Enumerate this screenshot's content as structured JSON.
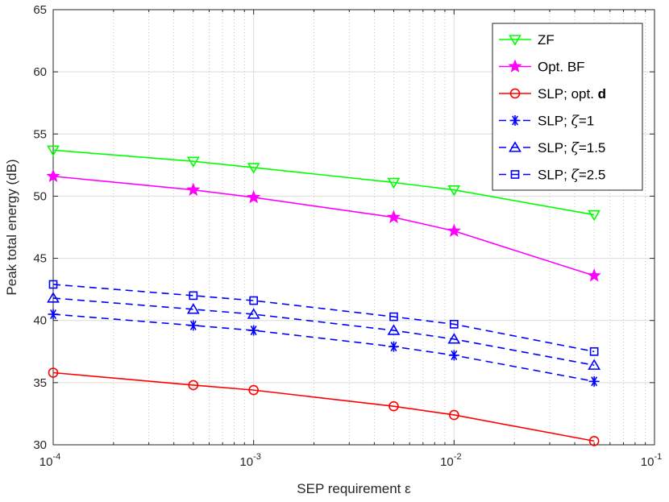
{
  "chart_data": {
    "type": "line",
    "title": "",
    "xlabel": "SEP requirement ε",
    "ylabel": "Peak total energy (dB)",
    "xscale": "log",
    "xlim": [
      0.0001,
      0.1
    ],
    "ylim": [
      30,
      65
    ],
    "grid": true,
    "x_ticks": [
      {
        "value": 0.0001,
        "base": "10",
        "exp": "-4"
      },
      {
        "value": 0.001,
        "base": "10",
        "exp": "-3"
      },
      {
        "value": 0.01,
        "base": "10",
        "exp": "-2"
      },
      {
        "value": 0.1,
        "base": "10",
        "exp": "-1"
      }
    ],
    "y_ticks": [
      {
        "value": 30,
        "label": "30"
      },
      {
        "value": 35,
        "label": "35"
      },
      {
        "value": 40,
        "label": "40"
      },
      {
        "value": 45,
        "label": "45"
      },
      {
        "value": 50,
        "label": "50"
      },
      {
        "value": 55,
        "label": "55"
      },
      {
        "value": 60,
        "label": "60"
      },
      {
        "value": 65,
        "label": "65"
      }
    ],
    "x": [
      0.0001,
      0.0005,
      0.001,
      0.005,
      0.01,
      0.05
    ],
    "legend_position": "top-right",
    "series": [
      {
        "key": "zf",
        "name": "ZF",
        "label_parts": [
          {
            "text": "ZF",
            "style": "normal"
          }
        ],
        "color": "#00ff00",
        "marker": "triangle-down",
        "dash": "solid",
        "values": [
          53.7,
          52.8,
          52.3,
          51.1,
          50.5,
          48.5
        ]
      },
      {
        "key": "optbf",
        "name": "Opt. BF",
        "label_parts": [
          {
            "text": "Opt. BF",
            "style": "normal"
          }
        ],
        "color": "#ff00ff",
        "marker": "star",
        "dash": "solid",
        "values": [
          51.6,
          50.5,
          49.9,
          48.3,
          47.2,
          43.6
        ]
      },
      {
        "key": "slp_optd",
        "name": "SLP; opt. d",
        "label_parts": [
          {
            "text": "SLP; opt. ",
            "style": "normal"
          },
          {
            "text": "d",
            "style": "bold"
          }
        ],
        "color": "#ff0000",
        "marker": "circle",
        "dash": "solid",
        "values": [
          35.8,
          34.8,
          34.4,
          33.1,
          32.4,
          30.3
        ]
      },
      {
        "key": "slp_z1",
        "name": "SLP; ζ=1",
        "label_parts": [
          {
            "text": "SLP; ",
            "style": "normal"
          },
          {
            "text": "ζ",
            "style": "italic"
          },
          {
            "text": "=1",
            "style": "normal"
          }
        ],
        "color": "#0000ff",
        "marker": "asterisk",
        "dash": "dashed",
        "values": [
          40.5,
          39.6,
          39.2,
          37.9,
          37.2,
          35.1
        ]
      },
      {
        "key": "slp_z15",
        "name": "SLP; ζ=1.5",
        "label_parts": [
          {
            "text": "SLP; ",
            "style": "normal"
          },
          {
            "text": "ζ",
            "style": "italic"
          },
          {
            "text": "=1.5",
            "style": "normal"
          }
        ],
        "color": "#0000ff",
        "marker": "triangle-up",
        "dash": "dashed",
        "values": [
          41.8,
          40.9,
          40.5,
          39.2,
          38.5,
          36.4
        ]
      },
      {
        "key": "slp_z25",
        "name": "SLP; ζ=2.5",
        "label_parts": [
          {
            "text": "SLP; ",
            "style": "normal"
          },
          {
            "text": "ζ",
            "style": "italic"
          },
          {
            "text": "=2.5",
            "style": "normal"
          }
        ],
        "color": "#0000ff",
        "marker": "square",
        "dash": "dashed",
        "values": [
          42.9,
          42.0,
          41.6,
          40.3,
          39.7,
          37.5
        ]
      }
    ]
  }
}
